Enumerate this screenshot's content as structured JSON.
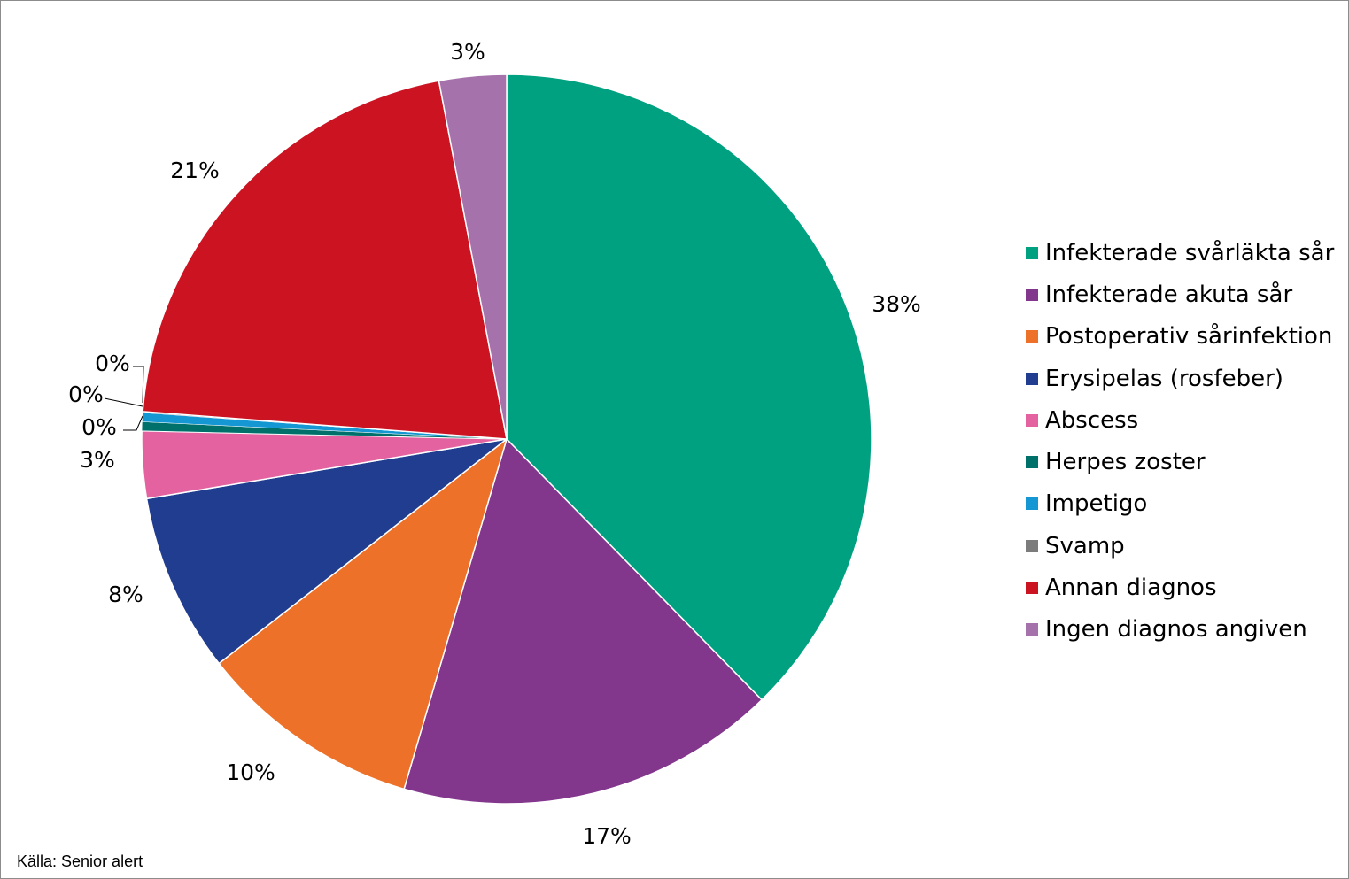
{
  "chart_data": {
    "type": "pie",
    "categories": [
      "Infekterade svårläkta sår",
      "Infekterade akuta sår",
      "Postoperativ sårinfektion",
      "Erysipelas (rosfeber)",
      "Abscess",
      "Herpes zoster",
      "Impetigo",
      "Svamp",
      "Annan diagnos",
      "Ingen diagnos angiven"
    ],
    "values": [
      38,
      17,
      10,
      8,
      3,
      0.4,
      0.4,
      0.05,
      21,
      3
    ],
    "data_labels": [
      "38%",
      "17%",
      "10%",
      "8%",
      "3%",
      "0%",
      "0%",
      "0%",
      "21%",
      "3%"
    ],
    "colors": [
      "#00a181",
      "#82368c",
      "#ed7128",
      "#213d8f",
      "#e462a0",
      "#00706b",
      "#1497d3",
      "#7c7c7c",
      "#cc1322",
      "#a572ac"
    ],
    "start_angle": "12 o'clock",
    "direction": "clockwise",
    "legend_position": "right"
  },
  "source": "Källa: Senior alert"
}
